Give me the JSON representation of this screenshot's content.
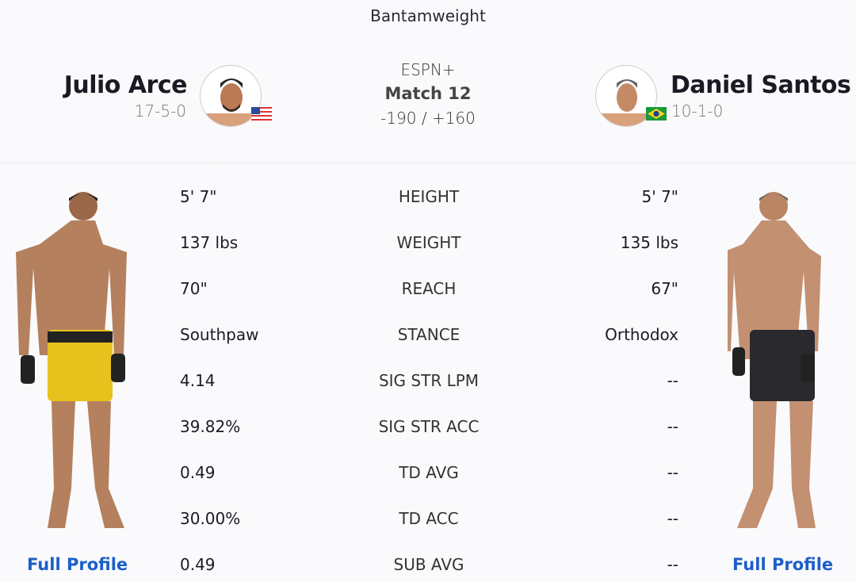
{
  "weight_class": "Bantamweight",
  "event": {
    "network": "ESPN+",
    "match": "Match 12",
    "odds": "-190 / +160"
  },
  "left_fighter": {
    "name": "Julio Arce",
    "record": "17-5-0",
    "flag": "usa-flag",
    "full_profile": "Full Profile"
  },
  "right_fighter": {
    "name": "Daniel Santos",
    "record": "10-1-0",
    "flag": "brazil-flag",
    "full_profile": "Full Profile"
  },
  "stats": [
    {
      "label": "HEIGHT",
      "left": "5' 7\"",
      "right": "5' 7\""
    },
    {
      "label": "WEIGHT",
      "left": "137 lbs",
      "right": "135 lbs"
    },
    {
      "label": "REACH",
      "left": "70\"",
      "right": "67\""
    },
    {
      "label": "STANCE",
      "left": "Southpaw",
      "right": "Orthodox"
    },
    {
      "label": "SIG STR LPM",
      "left": "4.14",
      "right": "--"
    },
    {
      "label": "SIG STR ACC",
      "left": "39.82%",
      "right": "--"
    },
    {
      "label": "TD AVG",
      "left": "0.49",
      "right": "--"
    },
    {
      "label": "TD ACC",
      "left": "30.00%",
      "right": "--"
    },
    {
      "label": "SUB AVG",
      "left": "0.49",
      "right": "--"
    }
  ],
  "colors": {
    "link": "#1d5fc9",
    "left_shorts": "#e8c21c",
    "right_shorts": "#2a2a2e"
  }
}
